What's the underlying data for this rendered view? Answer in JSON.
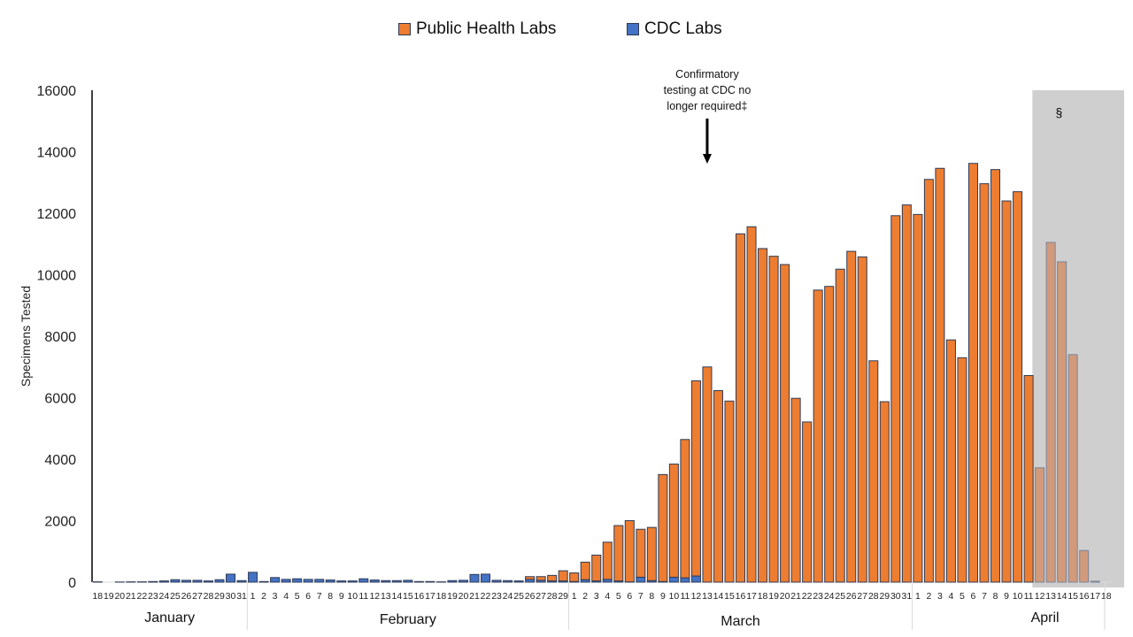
{
  "chart_data": {
    "type": "bar",
    "stacked": true,
    "title": "",
    "xlabel": "",
    "ylabel": "Specimens Tested",
    "ylim": [
      0,
      16000
    ],
    "yticks": [
      0,
      2000,
      4000,
      6000,
      8000,
      10000,
      12000,
      14000,
      16000
    ],
    "grid": false,
    "legend": {
      "placement": "top-center",
      "entries": [
        {
          "name": "Public Health Labs",
          "color": "#ed7d31"
        },
        {
          "name": "CDC Labs",
          "color": "#4472c4"
        }
      ]
    },
    "months": [
      {
        "label": "January",
        "days": [
          "18",
          "19",
          "20",
          "21",
          "22",
          "23",
          "24",
          "25",
          "26",
          "27",
          "28",
          "29",
          "30",
          "31"
        ]
      },
      {
        "label": "February",
        "days": [
          "1",
          "2",
          "3",
          "4",
          "5",
          "6",
          "7",
          "8",
          "9",
          "10",
          "11",
          "12",
          "13",
          "14",
          "15",
          "16",
          "17",
          "18",
          "19",
          "20",
          "21",
          "22",
          "23",
          "24",
          "25",
          "26",
          "27",
          "28",
          "29"
        ]
      },
      {
        "label": "March",
        "days": [
          "1",
          "2",
          "3",
          "4",
          "5",
          "6",
          "7",
          "8",
          "9",
          "10",
          "11",
          "12",
          "13",
          "14",
          "15",
          "16",
          "17",
          "18",
          "19",
          "20",
          "21",
          "22",
          "23",
          "24",
          "25",
          "26",
          "27",
          "28",
          "29",
          "30",
          "31"
        ]
      },
      {
        "label": "April",
        "days": [
          "1",
          "2",
          "3",
          "4",
          "5",
          "6",
          "7",
          "8",
          "9",
          "10",
          "11",
          "12",
          "13",
          "14",
          "15",
          "16",
          "17",
          "18"
        ]
      }
    ],
    "series": [
      {
        "name": "CDC Labs",
        "color": "#4472c4",
        "values": [
          10,
          0,
          5,
          10,
          10,
          20,
          40,
          80,
          60,
          60,
          40,
          80,
          260,
          50,
          320,
          20,
          150,
          90,
          110,
          90,
          90,
          70,
          40,
          40,
          110,
          70,
          50,
          50,
          60,
          20,
          20,
          10,
          50,
          60,
          250,
          260,
          60,
          50,
          40,
          90,
          60,
          40,
          40,
          20,
          80,
          40,
          90,
          40,
          10,
          160,
          50,
          20,
          160,
          140,
          200,
          0,
          0,
          0,
          0,
          0,
          0,
          0,
          0,
          0,
          0,
          0,
          0,
          0,
          0,
          0,
          0,
          0,
          0,
          0,
          0,
          0,
          0,
          0,
          0,
          0,
          0,
          0,
          0,
          0,
          0,
          0,
          0,
          0,
          0,
          0,
          0,
          0,
          0,
          0
        ]
      },
      {
        "name": "Public Health Labs",
        "color": "#ed7d31",
        "values": [
          0,
          0,
          0,
          0,
          0,
          0,
          0,
          0,
          0,
          0,
          0,
          0,
          0,
          0,
          0,
          0,
          0,
          0,
          0,
          0,
          0,
          0,
          0,
          0,
          0,
          0,
          0,
          0,
          0,
          0,
          0,
          0,
          0,
          0,
          0,
          0,
          0,
          0,
          0,
          90,
          120,
          180,
          330,
          280,
          570,
          840,
          1210,
          1800,
          1990,
          1560,
          1730,
          3480,
          3680,
          4500,
          6350,
          7000,
          6230,
          5890,
          11330,
          11560,
          10850,
          10600,
          10330,
          5980,
          5210,
          9500,
          9620,
          10180,
          10760,
          10580,
          7200,
          5870,
          11920,
          12270,
          11960,
          13100,
          13460,
          7880,
          7300,
          13620,
          12960,
          13420,
          12400,
          12700,
          6720,
          3720,
          11050,
          10420,
          7400,
          1030,
          30,
          0
        ]
      }
    ],
    "shaded_region": {
      "from": "April 12",
      "to": "April 18",
      "label": "§",
      "color": "#d0cfcf"
    },
    "annotations": [
      {
        "text": "Confirmatory testing at CDC no longer required‡",
        "points_to": "March 13",
        "type": "arrow-down"
      }
    ]
  }
}
